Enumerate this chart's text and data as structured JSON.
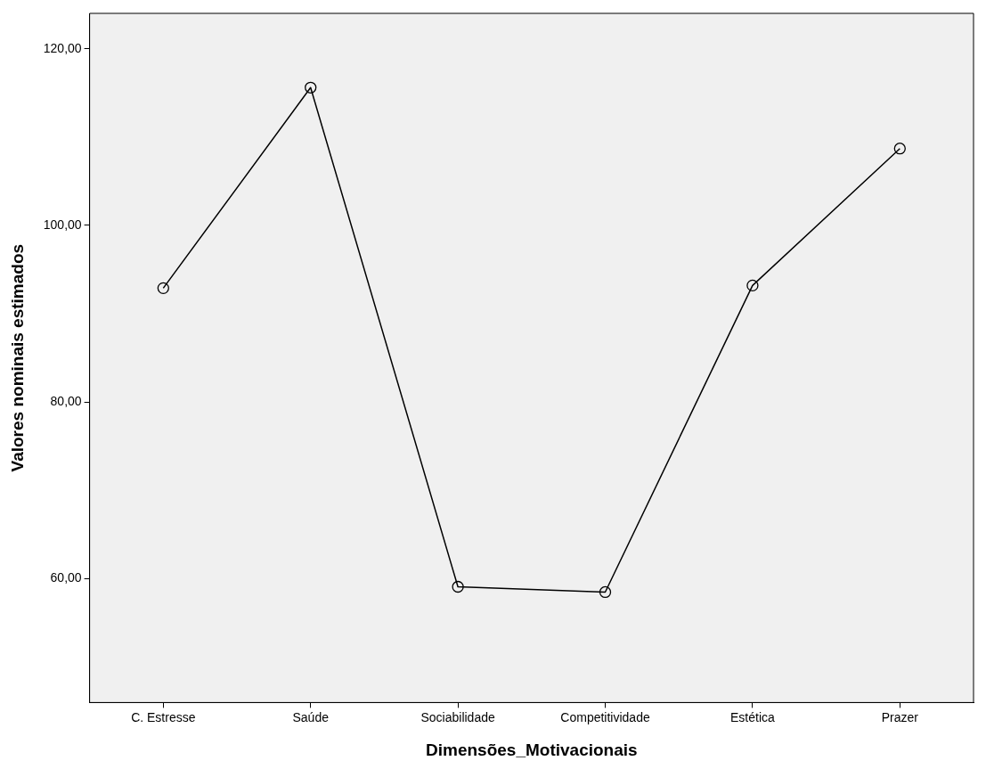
{
  "chart_data": {
    "type": "line",
    "xlabel": "Dimensões_Motivacionais",
    "ylabel": "Valores nominais estimados",
    "categories": [
      "C. Estresse",
      "Saúde",
      "Sociabilidade",
      "Competitividade",
      "Estética",
      "Prazer"
    ],
    "series": [
      {
        "color": "#000000",
        "values": [
          92.9,
          115.6,
          59.1,
          58.5,
          93.2,
          108.7
        ]
      }
    ],
    "ylim": [
      46,
      124
    ],
    "yticks": [
      {
        "value": 60,
        "label": "60,00"
      },
      {
        "value": 80,
        "label": "80,00"
      },
      {
        "value": 100,
        "label": "100,00"
      },
      {
        "value": 120,
        "label": "120,00"
      }
    ],
    "marker": "circle",
    "line_style": "solid",
    "grid": false,
    "legend": false
  }
}
